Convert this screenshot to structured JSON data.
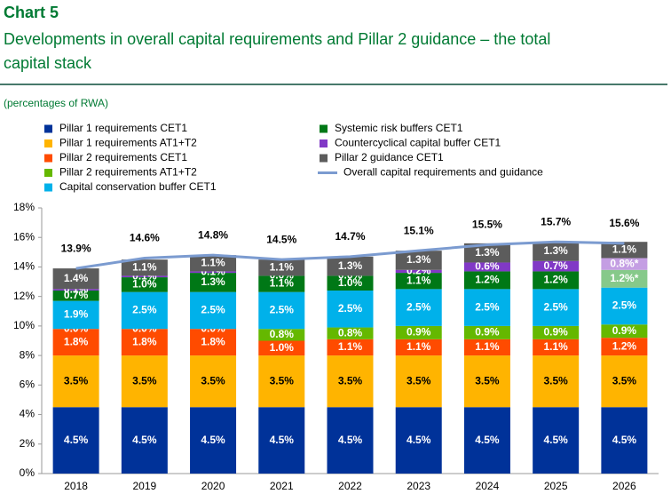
{
  "chart_data": {
    "type": "stacked-bar",
    "title": "Chart 5",
    "subtitle": "Developments in overall capital requirements and Pillar 2 guidance – the total capital stack",
    "y_label": "(percentages of RWA)",
    "categories": [
      "2018",
      "2019",
      "2020",
      "2021",
      "2022",
      "2023",
      "2024",
      "2025",
      "2026"
    ],
    "ylim": [
      0,
      18
    ],
    "yticks": [
      {
        "value": 0,
        "label": "0%"
      },
      {
        "value": 2,
        "label": "2%"
      },
      {
        "value": 4,
        "label": "4%"
      },
      {
        "value": 6,
        "label": "6%"
      },
      {
        "value": 8,
        "label": "8%"
      },
      {
        "value": 10,
        "label": "10%"
      },
      {
        "value": 12,
        "label": "12%"
      },
      {
        "value": 14,
        "label": "14%"
      },
      {
        "value": 16,
        "label": "16%"
      },
      {
        "value": 18,
        "label": "18%"
      }
    ],
    "grid": false,
    "series": [
      {
        "name": "Pillar 1 requirements CET1",
        "color": "#003299",
        "values": [
          4.5,
          4.5,
          4.5,
          4.5,
          4.5,
          4.5,
          4.5,
          4.5,
          4.5
        ],
        "value_labels": [
          "4.5%",
          "4.5%",
          "4.5%",
          "4.5%",
          "4.5%",
          "4.5%",
          "4.5%",
          "4.5%",
          "4.5%"
        ]
      },
      {
        "name": "Pillar 1 requirements AT1+T2",
        "color": "#ffb400",
        "values": [
          3.5,
          3.5,
          3.5,
          3.5,
          3.5,
          3.5,
          3.5,
          3.5,
          3.5
        ],
        "value_labels": [
          "3.5%",
          "3.5%",
          "3.5%",
          "3.5%",
          "3.5%",
          "3.5%",
          "3.5%",
          "3.5%",
          "3.5%"
        ]
      },
      {
        "name": "Pillar 2 requirements CET1",
        "color": "#ff4b00",
        "values": [
          1.8,
          1.8,
          1.8,
          1.0,
          1.1,
          1.1,
          1.1,
          1.1,
          1.2
        ],
        "value_labels": [
          "1.8%",
          "1.8%",
          "1.8%",
          "1.0%",
          "1.1%",
          "1.1%",
          "1.1%",
          "1.1%",
          "1.2%"
        ]
      },
      {
        "name": "Pillar 2 requirements AT1+T2",
        "color": "#65b800",
        "values": [
          0.0,
          0.0,
          0.0,
          0.8,
          0.8,
          0.9,
          0.9,
          0.9,
          0.9
        ],
        "value_labels": [
          "0.0%",
          "0.0%",
          "0.0%",
          "0.8%",
          "0.8%",
          "0.9%",
          "0.9%",
          "0.9%",
          "0.9%"
        ]
      },
      {
        "name": "Capital conservation buffer CET1",
        "color": "#00b1ea",
        "values": [
          1.9,
          2.5,
          2.5,
          2.5,
          2.5,
          2.5,
          2.5,
          2.5,
          2.5
        ],
        "value_labels": [
          "1.9%",
          "2.5%",
          "2.5%",
          "2.5%",
          "2.5%",
          "2.5%",
          "2.5%",
          "2.5%",
          "2.5%"
        ]
      },
      {
        "name": "Systemic risk buffers CET1",
        "color": "#007816",
        "point_colors": [
          "#007816",
          "#007816",
          "#007816",
          "#007816",
          "#007816",
          "#007816",
          "#007816",
          "#007816",
          "#86c98a"
        ],
        "values": [
          0.7,
          1.0,
          1.3,
          1.1,
          1.0,
          1.1,
          1.2,
          1.2,
          1.2
        ],
        "value_labels": [
          "0.7%",
          "1.0%",
          "1.3%",
          "1.1%",
          "1.0%",
          "1.1%",
          "1.2%",
          "1.2%",
          "1.2%*"
        ]
      },
      {
        "name": "Countercyclical capital buffer CET1",
        "color": "#8139c6",
        "point_colors": [
          "#8139c6",
          "#8139c6",
          "#8139c6",
          "#8139c6",
          "#8139c6",
          "#8139c6",
          "#8139c6",
          "#8139c6",
          "#c49ee3"
        ],
        "values": [
          0.1,
          0.1,
          0.1,
          0.0,
          0.0,
          0.2,
          0.6,
          0.7,
          0.8
        ],
        "value_labels": [
          "0.1%",
          "0.1%",
          "0.1%",
          "0.0%",
          "0.0%",
          "0.2%",
          "0.6%",
          "0.7%",
          "0.8%*"
        ]
      },
      {
        "name": "Pillar 2 guidance CET1",
        "color": "#5c5c5c",
        "values": [
          1.4,
          1.1,
          1.1,
          1.1,
          1.3,
          1.3,
          1.3,
          1.3,
          1.1
        ],
        "value_labels": [
          "1.4%",
          "1.1%",
          "1.1%",
          "1.1%",
          "1.3%",
          "1.3%",
          "1.3%",
          "1.3%",
          "1.1%"
        ]
      },
      {
        "name": "Overall capital requirements and guidance",
        "type": "line",
        "color": "#7b9bd0",
        "values": [
          13.9,
          14.6,
          14.8,
          14.5,
          14.7,
          15.1,
          15.5,
          15.7,
          15.6
        ],
        "value_labels": [
          "13.9%",
          "14.6%",
          "14.8%",
          "14.5%",
          "14.7%",
          "15.1%",
          "15.5%",
          "15.7%",
          "15.6%"
        ]
      }
    ]
  }
}
